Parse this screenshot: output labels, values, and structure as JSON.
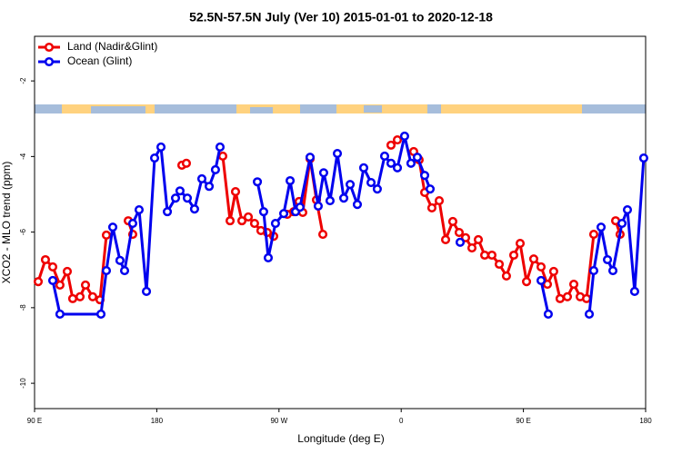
{
  "chart_data": {
    "type": "line",
    "title": "52.5N-57.5N July (Ver 10)   2015-01-01 to 2020-12-18",
    "x_label": "Longitude (deg E)",
    "y_label": "XCO2 - MLO trend (ppm)",
    "xlim": [
      90,
      540
    ],
    "xticks": [
      {
        "value": 90,
        "label": "90 E"
      },
      {
        "value": 180,
        "label": "180"
      },
      {
        "value": 270,
        "label": "90 W"
      },
      {
        "value": 360,
        "label": "0"
      },
      {
        "value": 450,
        "label": "90 E"
      },
      {
        "value": 540,
        "label": "180"
      }
    ],
    "ylim": [
      -10.67,
      -0.82
    ],
    "yticks": [
      -10,
      -8,
      -6,
      -4,
      -2
    ],
    "legend": "top left",
    "series": [
      {
        "name": "Land (Nadir&Glint)",
        "color": "#ee0000",
        "x": [
          92.7,
          98.0,
          103.4,
          108.7,
          114.1,
          118.1,
          123.5,
          127.5,
          132.8,
          138.2,
          142.9,
          null,
          159.0,
          162.3,
          null,
          198.5,
          201.8,
          null,
          228.6,
          234.0,
          238.0,
          242.7,
          247.4,
          252.0,
          256.7,
          261.4,
          266.1,
          null,
          276.1,
          280.8,
          284.8,
          287.5,
          292.9,
          297.6,
          302.3,
          null,
          352.5,
          357.2,
          null,
          369.2,
          373.2,
          377.3,
          382.6,
          388.0,
          392.7,
          398.0,
          402.7,
          407.4,
          412.1,
          416.8,
          421.5,
          426.8,
          432.2,
          437.5,
          442.9,
          447.6,
          452.3,
          457.6,
          463.0,
          467.7,
          472.3,
          477.0,
          482.4,
          487.1,
          491.8,
          496.5,
          501.8,
          null,
          517.9,
          521.2
        ],
        "values": [
          -7.31,
          -6.73,
          -6.92,
          -7.4,
          -7.04,
          -7.76,
          -7.71,
          -7.4,
          -7.71,
          -7.79,
          -6.08,
          null,
          -5.7,
          -6.06,
          null,
          -4.23,
          -4.18,
          null,
          -3.99,
          -5.7,
          -4.93,
          -5.7,
          -5.6,
          -5.77,
          -5.96,
          -6.01,
          -6.11,
          null,
          -5.53,
          -5.46,
          -5.19,
          -5.48,
          -4.06,
          -5.15,
          -6.06,
          null,
          -3.7,
          -3.56,
          null,
          -3.87,
          -4.09,
          -4.95,
          -5.36,
          -5.17,
          -6.2,
          -5.72,
          -6.01,
          -6.15,
          -6.42,
          -6.2,
          -6.61,
          -6.61,
          -6.85,
          -7.16,
          -6.61,
          -6.3,
          -7.31,
          -6.71,
          -6.92,
          -7.38,
          -7.04,
          -7.76,
          -7.71,
          -7.38,
          -7.71,
          -7.76,
          -6.06,
          null,
          -5.7,
          -6.06
        ]
      },
      {
        "name": "Ocean (Glint)",
        "color": "#0000ee",
        "x": [
          103.4,
          108.7,
          138.9,
          142.9,
          147.6,
          152.9,
          156.3,
          162.3,
          167.0,
          172.4,
          178.4,
          183.1,
          187.8,
          193.8,
          197.1,
          202.5,
          207.8,
          213.2,
          218.6,
          223.2,
          226.6,
          null,
          254.1,
          258.7,
          262.1,
          267.4,
          273.5,
          278.2,
          282.2,
          285.5,
          292.9,
          298.9,
          302.9,
          307.6,
          313.0,
          317.7,
          322.4,
          327.7,
          332.4,
          337.8,
          342.4,
          347.8,
          352.5,
          357.2,
          362.5,
          367.2,
          371.9,
          377.3,
          381.3,
          null,
          403.4,
          null,
          463.0,
          468.3,
          null,
          498.5,
          501.8,
          507.2,
          511.9,
          515.9,
          522.6,
          526.6,
          531.9,
          538.6
        ],
        "values": [
          -7.28,
          -8.17,
          -8.17,
          -7.02,
          -5.87,
          -6.75,
          -7.02,
          -5.77,
          -5.41,
          -7.57,
          -4.04,
          -3.75,
          -5.46,
          -5.1,
          -4.91,
          -5.1,
          -5.39,
          -4.59,
          -4.79,
          -4.35,
          -3.75,
          null,
          -4.67,
          -5.46,
          -6.68,
          -5.77,
          -5.51,
          -4.64,
          -5.46,
          -5.34,
          -4.02,
          -5.31,
          -4.43,
          -5.17,
          -3.92,
          -5.1,
          -4.74,
          -5.27,
          -4.3,
          -4.69,
          -4.86,
          -3.99,
          -4.18,
          -4.3,
          -3.46,
          -4.18,
          -4.02,
          -4.5,
          -4.86,
          null,
          -6.27,
          null,
          -7.28,
          -8.17,
          null,
          -8.17,
          -7.02,
          -5.87,
          -6.73,
          -7.02,
          -5.77,
          -5.41,
          -7.57,
          -4.04
        ]
      }
    ]
  }
}
